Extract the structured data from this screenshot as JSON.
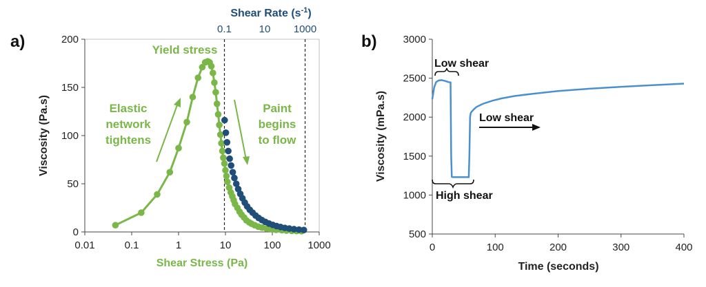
{
  "chart_data": [
    {
      "type": "scatter",
      "panel_label": "a)",
      "xlabel": "Shear Stress (Pa)",
      "x2label": "Shear Rate (s",
      "x2label_sup": "-1",
      "x2label_end": ")",
      "ylabel": "Viscosity (Pa.s)",
      "xscale": "log",
      "xlim": [
        0.01,
        1000
      ],
      "ylim": [
        0,
        200
      ],
      "xticks": [
        "0.01",
        "0.1",
        "1",
        "10",
        "100",
        "1000"
      ],
      "yticks": [
        "0",
        "50",
        "100",
        "150",
        "200"
      ],
      "x2ticks": [
        "0.1",
        "10",
        "1000"
      ],
      "vlines": [
        9.5,
        500
      ],
      "colors": {
        "stress": "#7ab648",
        "rate": "#1f4e79"
      },
      "series": [
        {
          "x": [
            0.045,
            0.16,
            0.35,
            0.65,
            1.0,
            1.5,
            2.0,
            2.6,
            3.2,
            3.7,
            4.2,
            4.6,
            5.0,
            5.4,
            5.8,
            6.2,
            6.6,
            7.0,
            7.4,
            7.8,
            8.2,
            8.6,
            9.0,
            9.5,
            10.0,
            10.5,
            11,
            12,
            13,
            14,
            15,
            16,
            18,
            20,
            22,
            25,
            28,
            32,
            36,
            42,
            50,
            60,
            75,
            95,
            120,
            160,
            200,
            260,
            330,
            420
          ],
          "y": [
            7,
            20,
            39,
            62,
            87,
            114,
            140,
            160,
            171,
            176,
            177,
            176,
            172,
            165,
            155,
            145,
            133,
            122,
            111,
            101,
            92,
            84,
            77,
            71,
            64,
            58,
            52,
            46,
            41,
            37,
            33,
            29,
            25,
            21,
            18,
            15,
            12,
            10,
            8.5,
            7,
            5.5,
            4.5,
            3.5,
            2.8,
            2.2,
            1.8,
            1.4,
            1.1,
            0.9,
            0.8
          ]
        },
        {
          "x": [
            9.6,
            10.2,
            10.8,
            11.5,
            12.3,
            13.2,
            14.3,
            15.5,
            17,
            18.7,
            20.7,
            23,
            25.8,
            29,
            33,
            38,
            44,
            51,
            60,
            71,
            85,
            102,
            123,
            150,
            185,
            230,
            290,
            370,
            470
          ],
          "y": [
            116,
            103,
            93,
            84,
            76,
            69,
            62,
            56,
            50,
            44.5,
            39.5,
            35,
            30.5,
            26.5,
            23,
            20,
            17,
            14.5,
            12.3,
            10.4,
            8.7,
            7.3,
            6.1,
            5.1,
            4.2,
            3.5,
            2.9,
            2.4,
            2.0
          ]
        }
      ],
      "annotations": {
        "yield": "Yield stress",
        "elastic_1": "Elastic",
        "elastic_2": "network",
        "elastic_3": "tightens",
        "paint_1": "Paint",
        "paint_2": "begins",
        "paint_3": "to flow"
      }
    },
    {
      "type": "line",
      "panel_label": "b)",
      "xlabel": "Time (seconds)",
      "ylabel": "Viscosity (mPa.s)",
      "xlim": [
        0,
        400
      ],
      "ylim": [
        500,
        3000
      ],
      "xticks": [
        "0",
        "100",
        "200",
        "300",
        "400"
      ],
      "yticks": [
        "500",
        "1000",
        "1500",
        "2000",
        "2500",
        "3000"
      ],
      "color": "#4a90d0",
      "x": [
        0,
        3,
        6,
        10,
        15,
        20,
        26,
        29,
        30,
        31,
        32,
        50,
        58,
        59,
        60,
        61,
        62,
        66,
        70,
        80,
        95,
        110,
        130,
        160,
        200,
        250,
        300,
        350,
        400
      ],
      "y": [
        2230,
        2380,
        2450,
        2470,
        2475,
        2465,
        2450,
        2445,
        1500,
        1235,
        1230,
        1230,
        1230,
        1500,
        2000,
        2050,
        2065,
        2100,
        2130,
        2170,
        2210,
        2240,
        2270,
        2300,
        2335,
        2365,
        2390,
        2410,
        2430
      ],
      "annotations": {
        "low1": "Low shear",
        "high": "High shear",
        "low2": "Low shear"
      }
    }
  ]
}
